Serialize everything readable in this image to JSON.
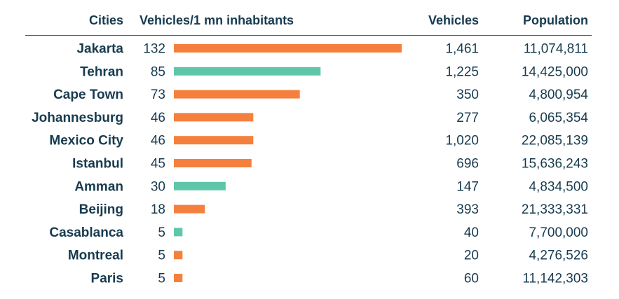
{
  "header": {
    "cities": "Cities",
    "metric": "Vehicles/1 mn inhabitants",
    "vehicles": "Vehicles",
    "population": "Population"
  },
  "colors": {
    "orange": "#f5803e",
    "teal": "#5ec6a9",
    "text": "#173b4f",
    "rule": "#3f5a68"
  },
  "chart_data": {
    "type": "bar",
    "orientation": "horizontal",
    "categories": [
      "Jakarta",
      "Tehran",
      "Cape Town",
      "Johannesburg",
      "Mexico City",
      "Istanbul",
      "Amman",
      "Beijing",
      "Casablanca",
      "Montreal",
      "Paris"
    ],
    "values": [
      132,
      85,
      73,
      46,
      46,
      45,
      30,
      18,
      5,
      5,
      5
    ],
    "value_labels": [
      "132",
      "85",
      "73",
      "46",
      "46",
      "45",
      "30",
      "18",
      "5",
      "5",
      "5"
    ],
    "bar_colors": [
      "orange",
      "teal",
      "orange",
      "orange",
      "orange",
      "orange",
      "teal",
      "orange",
      "teal",
      "orange",
      "orange"
    ],
    "vehicles": [
      "1,461",
      "1,225",
      "350",
      "277",
      "1,020",
      "696",
      "147",
      "393",
      "40",
      "20",
      "60"
    ],
    "population": [
      "11,074,811",
      "14,425,000",
      "4,800,954",
      "6,065,354",
      "22,085,139",
      "15,636,243",
      "4,834,500",
      "21,333,331",
      "7,700,000",
      "4,276,526",
      "11,142,303"
    ],
    "xlim": [
      0,
      132
    ],
    "grid": false,
    "legend": "none"
  }
}
